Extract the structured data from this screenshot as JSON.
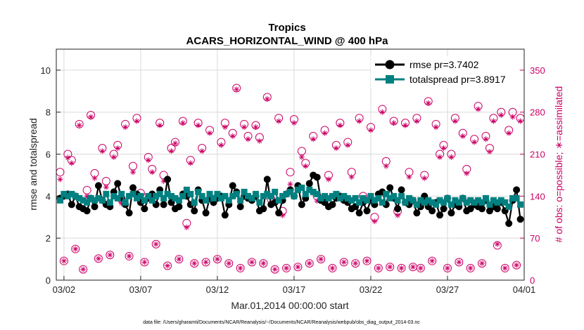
{
  "chart_data": {
    "type": "line",
    "title": "Tropics",
    "subtitle": "ACARS_HORIZONTAL_WIND @ 400 hPa",
    "xlabel": "Mar.01,2014 00:00:00 start",
    "ylabel": "rmse and totalspread",
    "ylabel_right": "# of obs: o=possible; ∗=assimilated",
    "footnote": "data file: /Users/gharamti/Documents/NCAR/Reanalysis/~/Documents/NCAR/Reanalysis/webpub/obs_diag_output_2014-03.nc",
    "x_tick_labels": [
      "03/02",
      "03/07",
      "03/12",
      "03/17",
      "03/22",
      "03/27",
      "04/01"
    ],
    "x_tick_days": [
      2,
      7,
      12,
      17,
      22,
      27,
      32
    ],
    "xlim": [
      1.5,
      32
    ],
    "y_ticks": [
      0,
      2,
      4,
      6,
      8,
      10
    ],
    "ylim": [
      0,
      11
    ],
    "y2_ticks": [
      0,
      70,
      140,
      210,
      280,
      350
    ],
    "y2lim": [
      0,
      385
    ],
    "grid": true,
    "legend_position": "top-right",
    "colors": {
      "rmse": "#000000",
      "totalspread": "#008080",
      "obs": "#cc0066"
    },
    "series": [
      {
        "name": "rmse pr=3.7402",
        "marker": "filled-circle",
        "x": [
          1.75,
          2.0,
          2.25,
          2.5,
          2.75,
          3.0,
          3.25,
          3.5,
          3.75,
          4.0,
          4.25,
          4.5,
          4.75,
          5.0,
          5.25,
          5.5,
          5.75,
          6.0,
          6.25,
          6.5,
          6.75,
          7.0,
          7.25,
          7.5,
          7.75,
          8.0,
          8.25,
          8.5,
          8.75,
          9.0,
          9.25,
          9.5,
          9.75,
          10.0,
          10.25,
          10.5,
          10.75,
          11.0,
          11.25,
          11.5,
          11.75,
          12.0,
          12.25,
          12.5,
          12.75,
          13.0,
          13.25,
          13.5,
          13.75,
          14.0,
          14.25,
          14.5,
          14.75,
          15.0,
          15.25,
          15.5,
          15.75,
          16.0,
          16.25,
          16.5,
          16.75,
          17.0,
          17.25,
          17.5,
          17.75,
          18.0,
          18.25,
          18.5,
          18.75,
          19.0,
          19.25,
          19.5,
          19.75,
          20.0,
          20.25,
          20.5,
          20.75,
          21.0,
          21.25,
          21.5,
          21.75,
          22.0,
          22.25,
          22.5,
          22.75,
          23.0,
          23.25,
          23.5,
          23.75,
          24.0,
          24.25,
          24.5,
          24.75,
          25.0,
          25.25,
          25.5,
          25.75,
          26.0,
          26.25,
          26.5,
          26.75,
          27.0,
          27.25,
          27.5,
          27.75,
          28.0,
          28.25,
          28.5,
          28.75,
          29.0,
          29.25,
          29.5,
          29.75,
          30.0,
          30.25,
          30.5,
          30.75,
          31.0,
          31.25,
          31.5,
          31.75
        ],
        "values": [
          3.9,
          4.0,
          4.1,
          3.6,
          4.0,
          3.5,
          3.4,
          3.3,
          3.9,
          3.5,
          4.5,
          3.8,
          3.6,
          3.5,
          4.2,
          4.6,
          3.9,
          3.6,
          3.2,
          4.4,
          4.1,
          3.7,
          3.4,
          3.9,
          4.1,
          3.6,
          4.3,
          3.6,
          4.8,
          3.7,
          3.4,
          3.5,
          4.1,
          4.0,
          3.6,
          3.3,
          4.3,
          3.8,
          3.2,
          3.9,
          3.7,
          3.9,
          4.0,
          3.1,
          3.6,
          4.5,
          4.2,
          3.5,
          4.0,
          3.9,
          3.8,
          4.0,
          3.3,
          3.4,
          4.8,
          3.6,
          3.7,
          3.2,
          3.8,
          4.1,
          4.3,
          4.0,
          4.5,
          3.6,
          3.9,
          4.6,
          5.0,
          4.9,
          3.8,
          3.7,
          3.5,
          3.6,
          3.9,
          4.0,
          3.8,
          3.7,
          3.4,
          3.5,
          3.2,
          3.7,
          3.3,
          3.8,
          3.6,
          4.1,
          4.2,
          3.6,
          4.4,
          3.9,
          3.4,
          4.3,
          3.7,
          3.6,
          3.8,
          3.2,
          3.5,
          4.0,
          3.5,
          3.3,
          3.7,
          3.1,
          3.4,
          3.9,
          3.2,
          3.6,
          3.5,
          3.9,
          3.3,
          3.4,
          3.6,
          3.5,
          3.4,
          3.8,
          3.3,
          3.5,
          3.4,
          3.7,
          3.3,
          2.7,
          3.8,
          4.3,
          2.9
        ]
      },
      {
        "name": "totalspread pr=3.8917",
        "marker": "filled-square",
        "x": [
          1.75,
          2.0,
          2.25,
          2.5,
          2.75,
          3.0,
          3.25,
          3.5,
          3.75,
          4.0,
          4.25,
          4.5,
          4.75,
          5.0,
          5.25,
          5.5,
          5.75,
          6.0,
          6.25,
          6.5,
          6.75,
          7.0,
          7.25,
          7.5,
          7.75,
          8.0,
          8.25,
          8.5,
          8.75,
          9.0,
          9.25,
          9.5,
          9.75,
          10.0,
          10.25,
          10.5,
          10.75,
          11.0,
          11.25,
          11.5,
          11.75,
          12.0,
          12.25,
          12.5,
          12.75,
          13.0,
          13.25,
          13.5,
          13.75,
          14.0,
          14.25,
          14.5,
          14.75,
          15.0,
          15.25,
          15.5,
          15.75,
          16.0,
          16.25,
          16.5,
          16.75,
          17.0,
          17.25,
          17.5,
          17.75,
          18.0,
          18.25,
          18.5,
          18.75,
          19.0,
          19.25,
          19.5,
          19.75,
          20.0,
          20.25,
          20.5,
          20.75,
          21.0,
          21.25,
          21.5,
          21.75,
          22.0,
          22.25,
          22.5,
          22.75,
          23.0,
          23.25,
          23.5,
          23.75,
          24.0,
          24.25,
          24.5,
          24.75,
          25.0,
          25.25,
          25.5,
          25.75,
          26.0,
          26.25,
          26.5,
          26.75,
          27.0,
          27.25,
          27.5,
          27.75,
          28.0,
          28.25,
          28.5,
          28.75,
          29.0,
          29.25,
          29.5,
          29.75,
          30.0,
          30.25,
          30.5,
          30.75,
          31.0,
          31.25,
          31.5,
          31.75
        ],
        "values": [
          3.8,
          4.1,
          4.0,
          4.1,
          4.0,
          3.9,
          3.8,
          3.7,
          3.9,
          3.8,
          3.9,
          3.8,
          4.1,
          3.7,
          4.0,
          3.9,
          4.1,
          3.7,
          4.0,
          4.1,
          3.9,
          4.0,
          3.8,
          4.0,
          3.8,
          4.0,
          4.1,
          3.9,
          4.1,
          4.0,
          3.9,
          3.8,
          4.0,
          4.3,
          4.1,
          3.7,
          4.2,
          4.0,
          3.8,
          4.1,
          3.9,
          4.1,
          3.9,
          4.0,
          3.8,
          4.0,
          4.1,
          3.8,
          4.2,
          4.0,
          3.9,
          4.1,
          3.7,
          4.0,
          4.1,
          4.0,
          4.2,
          3.8,
          4.0,
          4.1,
          4.2,
          4.0,
          4.3,
          4.4,
          4.1,
          4.3,
          4.2,
          4.1,
          3.9,
          4.0,
          3.9,
          4.0,
          4.1,
          3.9,
          4.0,
          3.9,
          3.8,
          3.9,
          3.7,
          3.9,
          3.8,
          4.0,
          3.8,
          3.9,
          3.7,
          4.1,
          3.9,
          4.0,
          3.8,
          4.0,
          3.7,
          3.9,
          3.8,
          3.6,
          3.8,
          3.7,
          3.8,
          3.7,
          3.6,
          3.8,
          3.7,
          3.9,
          3.6,
          3.8,
          3.7,
          3.9,
          3.7,
          3.8,
          3.7,
          3.8,
          3.7,
          3.9,
          3.6,
          3.8,
          3.7,
          3.8,
          3.7,
          3.5,
          3.9,
          3.9,
          3.6
        ]
      },
      {
        "name": "possible",
        "axis": "right",
        "marker": "open-circle",
        "x": [
          1.75,
          2.0,
          2.25,
          2.5,
          2.75,
          3.0,
          3.25,
          3.5,
          3.75,
          4.0,
          4.25,
          4.5,
          4.75,
          5.0,
          5.25,
          5.5,
          5.75,
          6.0,
          6.25,
          6.5,
          6.75,
          7.0,
          7.25,
          7.5,
          7.75,
          8.0,
          8.25,
          8.5,
          8.75,
          9.0,
          9.25,
          9.5,
          9.75,
          10.0,
          10.25,
          10.5,
          10.75,
          11.0,
          11.25,
          11.5,
          11.75,
          12.0,
          12.25,
          12.5,
          12.75,
          13.0,
          13.25,
          13.5,
          13.75,
          14.0,
          14.25,
          14.5,
          14.75,
          15.0,
          15.25,
          15.5,
          15.75,
          16.0,
          16.25,
          16.5,
          16.75,
          17.0,
          17.25,
          17.5,
          17.75,
          18.0,
          18.25,
          18.5,
          18.75,
          19.0,
          19.25,
          19.5,
          19.75,
          20.0,
          20.25,
          20.5,
          20.75,
          21.0,
          21.25,
          21.5,
          21.75,
          22.0,
          22.25,
          22.5,
          22.75,
          23.0,
          23.25,
          23.5,
          23.75,
          24.0,
          24.25,
          24.5,
          24.75,
          25.0,
          25.25,
          25.5,
          25.75,
          26.0,
          26.25,
          26.5,
          26.75,
          27.0,
          27.25,
          27.5,
          27.75,
          28.0,
          28.25,
          28.5,
          28.75,
          29.0,
          29.25,
          29.5,
          29.75,
          30.0,
          30.25,
          30.5,
          30.75,
          31.0,
          31.25,
          31.5,
          31.75
        ],
        "values": [
          180,
          32,
          210,
          200,
          52,
          260,
          18,
          150,
          275,
          178,
          36,
          220,
          165,
          42,
          210,
          225,
          135,
          260,
          40,
          190,
          270,
          145,
          30,
          205,
          185,
          60,
          262,
          175,
          24,
          220,
          230,
          35,
          265,
          95,
          200,
          28,
          262,
          220,
          30,
          250,
          135,
          35,
          230,
          262,
          28,
          245,
          320,
          20,
          260,
          240,
          30,
          258,
          238,
          28,
          305,
          135,
          18,
          270,
          115,
          20,
          180,
          268,
          22,
          215,
          195,
          28,
          240,
          140,
          35,
          250,
          175,
          20,
          225,
          262,
          30,
          230,
          180,
          28,
          270,
          140,
          32,
          255,
          105,
          20,
          285,
          198,
          22,
          265,
          115,
          20,
          262,
          180,
          22,
          270,
          20,
          175,
          298,
          32,
          260,
          210,
          225,
          20,
          210,
          270,
          30,
          245,
          185,
          20,
          235,
          290,
          28,
          240,
          220,
          270,
          58,
          280,
          20,
          250,
          280,
          25,
          270
        ]
      },
      {
        "name": "assimilated",
        "axis": "right",
        "marker": "asterisk",
        "x": [
          1.75,
          2.0,
          2.25,
          2.5,
          2.75,
          3.0,
          3.25,
          3.5,
          3.75,
          4.0,
          4.25,
          4.5,
          4.75,
          5.0,
          5.25,
          5.5,
          5.75,
          6.0,
          6.25,
          6.5,
          6.75,
          7.0,
          7.25,
          7.5,
          7.75,
          8.0,
          8.25,
          8.5,
          8.75,
          9.0,
          9.25,
          9.5,
          9.75,
          10.0,
          10.25,
          10.5,
          10.75,
          11.0,
          11.25,
          11.5,
          11.75,
          12.0,
          12.25,
          12.5,
          12.75,
          13.0,
          13.25,
          13.5,
          13.75,
          14.0,
          14.25,
          14.5,
          14.75,
          15.0,
          15.25,
          15.5,
          15.75,
          16.0,
          16.25,
          16.5,
          16.75,
          17.0,
          17.25,
          17.5,
          17.75,
          18.0,
          18.25,
          18.5,
          18.75,
          19.0,
          19.25,
          19.5,
          19.75,
          20.0,
          20.25,
          20.5,
          20.75,
          21.0,
          21.25,
          21.5,
          21.75,
          22.0,
          22.25,
          22.5,
          22.75,
          23.0,
          23.25,
          23.5,
          23.75,
          24.0,
          24.25,
          24.5,
          24.75,
          25.0,
          25.25,
          25.5,
          25.75,
          26.0,
          26.25,
          26.5,
          26.75,
          27.0,
          27.25,
          27.5,
          27.75,
          28.0,
          28.25,
          28.5,
          28.75,
          29.0,
          29.25,
          29.5,
          29.75,
          30.0,
          30.25,
          30.5,
          30.75,
          31.0,
          31.25,
          31.5,
          31.75
        ],
        "values": [
          168,
          32,
          204,
          195,
          52,
          258,
          18,
          140,
          272,
          170,
          36,
          215,
          155,
          42,
          205,
          220,
          128,
          255,
          40,
          180,
          265,
          138,
          30,
          200,
          180,
          60,
          258,
          165,
          24,
          215,
          228,
          35,
          262,
          88,
          195,
          28,
          258,
          215,
          30,
          245,
          128,
          35,
          225,
          255,
          28,
          240,
          318,
          20,
          255,
          235,
          30,
          255,
          232,
          28,
          302,
          128,
          18,
          265,
          108,
          20,
          160,
          262,
          22,
          205,
          190,
          28,
          235,
          132,
          35,
          245,
          168,
          20,
          220,
          258,
          30,
          225,
          172,
          28,
          265,
          132,
          32,
          250,
          98,
          20,
          280,
          190,
          22,
          262,
          108,
          20,
          258,
          172,
          22,
          265,
          20,
          170,
          295,
          32,
          255,
          205,
          220,
          20,
          205,
          265,
          30,
          240,
          178,
          20,
          230,
          285,
          28,
          235,
          214,
          265,
          60,
          275,
          20,
          245,
          272,
          25,
          265
        ]
      }
    ]
  }
}
